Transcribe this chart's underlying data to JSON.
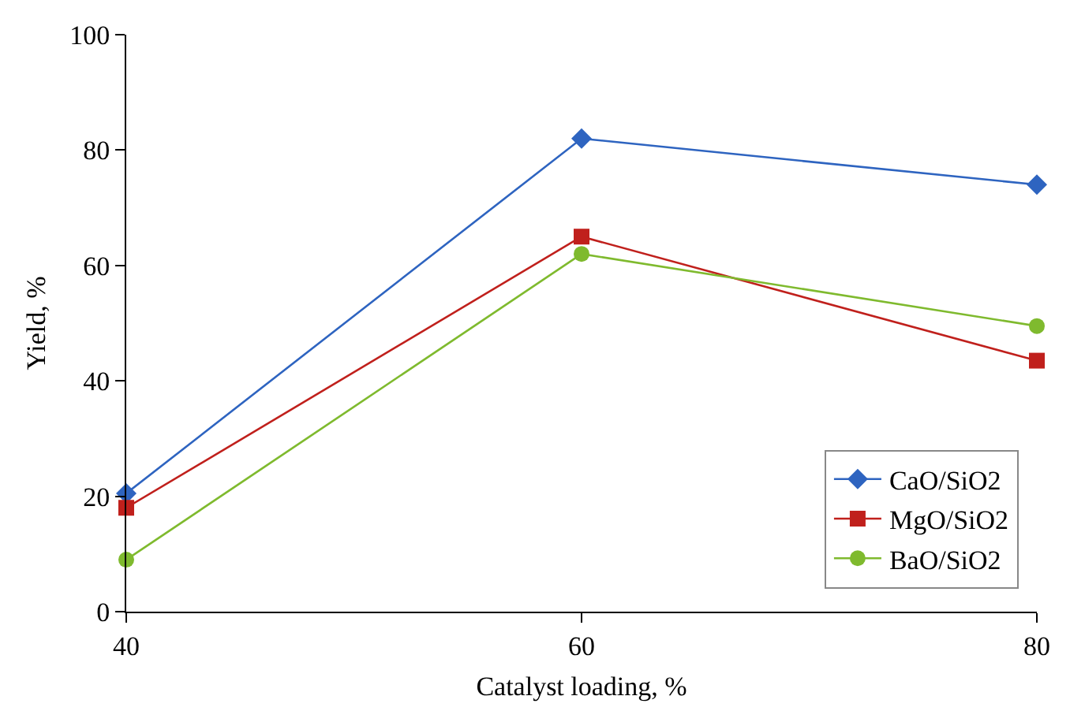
{
  "chart_data": {
    "type": "line",
    "xlabel": "Catalyst loading, %",
    "ylabel": "Yield, %",
    "x": [
      40,
      60,
      80
    ],
    "xlim": [
      40,
      80
    ],
    "xticks": [
      40,
      60,
      80
    ],
    "ylim": [
      0,
      100
    ],
    "yticks": [
      0,
      20,
      40,
      60,
      80,
      100
    ],
    "grid": false,
    "legend": "bottom right",
    "line_style": "solid",
    "series": [
      {
        "name": "CaO/SiO2",
        "color": "#2e64c0",
        "marker": "diamond",
        "values": [
          20.5,
          82,
          74
        ]
      },
      {
        "name": "MgO/SiO2",
        "color": "#c0201c",
        "marker": "square",
        "values": [
          18,
          65,
          43.5
        ]
      },
      {
        "name": "BaO/SiO2",
        "color": "#7fba2e",
        "marker": "circle",
        "values": [
          9,
          62,
          49.5
        ]
      }
    ]
  }
}
